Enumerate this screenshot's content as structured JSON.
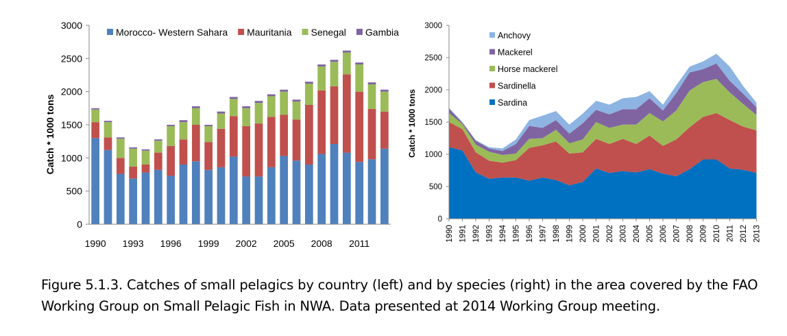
{
  "chart_data": [
    {
      "type": "bar",
      "stacked": true,
      "ylabel": "Catch * 1000 tons",
      "ylim": [
        0,
        3000
      ],
      "yticks": [
        "0",
        "500",
        "1000",
        "1500",
        "2000",
        "2500",
        "3000"
      ],
      "x": [
        1990,
        1991,
        1992,
        1993,
        1994,
        1995,
        1996,
        1997,
        1998,
        1999,
        2000,
        2001,
        2002,
        2003,
        2004,
        2005,
        2006,
        2007,
        2008,
        2009,
        2010,
        2011,
        2012,
        2013
      ],
      "xtick_labels": [
        "1990",
        "1993",
        "1996",
        "1999",
        "2002",
        "2005",
        "2008",
        "2011"
      ],
      "legend_position": "top",
      "series": [
        {
          "name": "Morocco- Western Sahara",
          "color": "#4F81BD",
          "values": [
            1300,
            1120,
            760,
            690,
            780,
            820,
            730,
            900,
            950,
            820,
            860,
            1020,
            720,
            720,
            860,
            1030,
            960,
            900,
            1060,
            1210,
            1080,
            940,
            980,
            1140
          ]
        },
        {
          "name": "Mauritania",
          "color": "#C0504D",
          "values": [
            240,
            190,
            240,
            180,
            120,
            260,
            450,
            380,
            550,
            420,
            580,
            610,
            760,
            800,
            760,
            620,
            620,
            900,
            960,
            870,
            1180,
            1060,
            760,
            560
          ]
        },
        {
          "name": "Senegal",
          "color": "#9BBB59",
          "values": [
            190,
            230,
            290,
            270,
            210,
            180,
            300,
            260,
            250,
            240,
            230,
            260,
            270,
            310,
            310,
            350,
            270,
            320,
            360,
            370,
            330,
            410,
            370,
            300
          ]
        },
        {
          "name": "Gambia",
          "color": "#8064A2",
          "values": [
            20,
            20,
            20,
            20,
            20,
            20,
            20,
            30,
            30,
            20,
            30,
            30,
            30,
            30,
            30,
            30,
            30,
            30,
            30,
            30,
            30,
            30,
            30,
            30
          ]
        }
      ]
    },
    {
      "type": "area",
      "stacked": true,
      "ylabel": "Catch * 1000 tons",
      "ylim": [
        0,
        3000
      ],
      "yticks": [
        "0",
        "500",
        "1000",
        "1500",
        "2000",
        "2500",
        "3000"
      ],
      "x": [
        "1990",
        "1991",
        "1992",
        "1993",
        "1994",
        "1995",
        "1996",
        "1997",
        "1998",
        "1999",
        "2000",
        "2001",
        "2002",
        "2003",
        "2004",
        "2005",
        "2006",
        "2007",
        "2008",
        "2009",
        "2010",
        "2011",
        "2012",
        "2013"
      ],
      "legend_position": "top-left",
      "series": [
        {
          "name": "Sardina",
          "color": "#0070C0",
          "values": [
            1110,
            1060,
            720,
            620,
            640,
            640,
            590,
            640,
            600,
            520,
            570,
            780,
            710,
            740,
            720,
            770,
            700,
            660,
            770,
            920,
            920,
            780,
            760,
            710
          ]
        },
        {
          "name": "Sardinella",
          "color": "#C0504D",
          "values": [
            390,
            330,
            310,
            280,
            230,
            270,
            510,
            500,
            600,
            490,
            460,
            460,
            450,
            500,
            440,
            520,
            430,
            570,
            650,
            660,
            720,
            750,
            670,
            660
          ]
        },
        {
          "name": "Horse mackerel",
          "color": "#9BBB59",
          "values": [
            140,
            80,
            120,
            140,
            120,
            100,
            140,
            110,
            180,
            160,
            200,
            260,
            250,
            220,
            300,
            350,
            380,
            450,
            570,
            540,
            530,
            430,
            350,
            240
          ]
        },
        {
          "name": "Mackerel",
          "color": "#8064A2",
          "values": [
            70,
            20,
            60,
            50,
            60,
            150,
            200,
            160,
            150,
            150,
            250,
            190,
            210,
            240,
            240,
            230,
            170,
            270,
            280,
            200,
            240,
            180,
            160,
            120
          ]
        },
        {
          "name": "Anchovy",
          "color": "#8DB4E2",
          "values": [
            10,
            10,
            10,
            20,
            40,
            70,
            90,
            190,
            140,
            140,
            150,
            140,
            150,
            170,
            190,
            110,
            90,
            120,
            90,
            120,
            150,
            220,
            120,
            70
          ]
        }
      ]
    }
  ],
  "caption": {
    "line1": "Figure 5.1.3. Catches of small pelagics by country (left) and by species (right) in the area covered by the FAO",
    "line2": "Working Group on Small Pelagic Fish in NWA. Data presented at 2014 Working Group meeting."
  }
}
